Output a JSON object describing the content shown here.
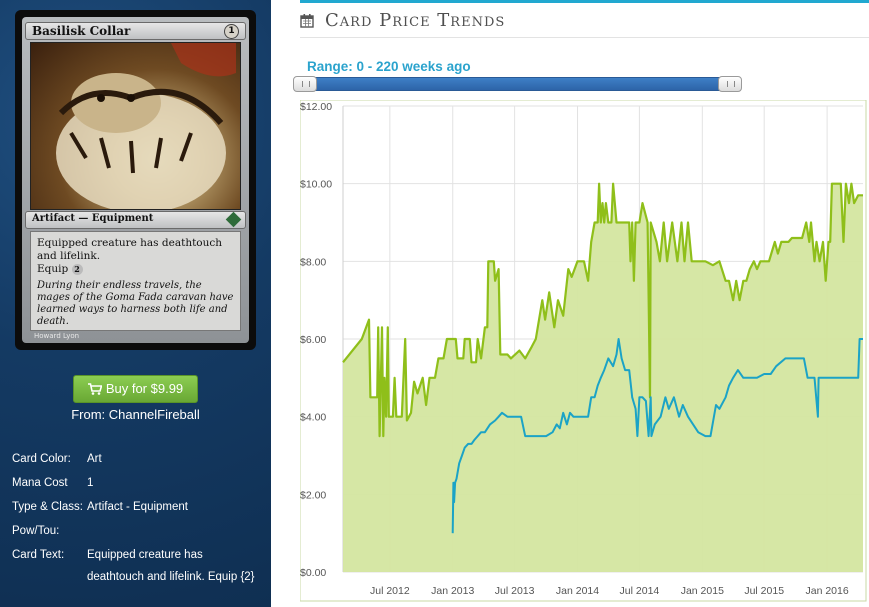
{
  "card": {
    "name": "Basilisk Collar",
    "mana_symbol": "1",
    "type_line": "Artifact — Equipment",
    "rules_text": "Equipped creature has deathtouch and lifelink.\nEquip",
    "equip_cost": "2",
    "flavor_text": "During their endless travels, the mages of the Goma Fada caravan have learned ways to harness both life and death.",
    "artist": "Howard Lyon"
  },
  "buy": {
    "label": "Buy for $9.99",
    "vendor": "From: ChannelFireball"
  },
  "info": [
    {
      "label": "Card Color:",
      "value": "Art"
    },
    {
      "label": "Mana Cost",
      "value": "1"
    },
    {
      "label": "Type & Class:",
      "value": "Artifact - Equipment"
    },
    {
      "label": "Pow/Tou:",
      "value": ""
    },
    {
      "label": "Card Text:",
      "value": "Equipped creature has deathtouch and lifelink. Equip {2}"
    }
  ],
  "header": {
    "title": "Card Price Trends"
  },
  "range": {
    "label": "Range: 0 - 220 weeks ago",
    "min": 0,
    "max": 220
  },
  "colors": {
    "accent": "#21a8d0",
    "paper_line": "#8fbf1a",
    "paper_fill": "#d4e6a0",
    "online_line": "#1ba3c6",
    "button": "#7dbd44",
    "panel": "#143a63"
  },
  "icons": {
    "calendar": "calendar-icon",
    "cart": "cart-icon",
    "set": "set-symbol-icon"
  },
  "chart_data": {
    "type": "line",
    "title": "",
    "xlabel": "",
    "ylabel": "",
    "x_ticks": [
      "Jul 2012",
      "Jan 2013",
      "Jul 2013",
      "Jan 2014",
      "Jul 2014",
      "Jan 2015",
      "Jul 2015",
      "Jan 2016"
    ],
    "y_ticks": [
      "$0.00",
      "$2.00",
      "$4.00",
      "$6.00",
      "$8.00",
      "$10.00",
      "$12.00"
    ],
    "ylim": [
      0,
      12
    ],
    "xlim": [
      "2012-02-15",
      "2016-04-15"
    ],
    "grid": true,
    "series": [
      {
        "area": true,
        "points": [
          [
            "2012-02-15",
            5.4
          ],
          [
            "2012-04-10",
            6.0
          ],
          [
            "2012-05-01",
            6.5
          ],
          [
            "2012-05-05",
            4.5
          ],
          [
            "2012-05-25",
            4.5
          ],
          [
            "2012-05-28",
            6.3
          ],
          [
            "2012-06-01",
            3.5
          ],
          [
            "2012-06-08",
            6.3
          ],
          [
            "2012-06-12",
            3.5
          ],
          [
            "2012-06-15",
            5.0
          ],
          [
            "2012-06-20",
            4.0
          ],
          [
            "2012-06-25",
            6.3
          ],
          [
            "2012-06-28",
            4.0
          ],
          [
            "2012-07-10",
            4.0
          ],
          [
            "2012-07-15",
            5.0
          ],
          [
            "2012-07-20",
            4.0
          ],
          [
            "2012-08-05",
            4.0
          ],
          [
            "2012-08-15",
            6.0
          ],
          [
            "2012-08-20",
            3.9
          ],
          [
            "2012-09-01",
            4.1
          ],
          [
            "2012-09-10",
            4.9
          ],
          [
            "2012-09-20",
            4.6
          ],
          [
            "2012-10-05",
            5.0
          ],
          [
            "2012-10-15",
            4.3
          ],
          [
            "2012-10-25",
            5.0
          ],
          [
            "2012-11-10",
            5.0
          ],
          [
            "2012-11-20",
            5.5
          ],
          [
            "2012-12-05",
            5.5
          ],
          [
            "2012-12-15",
            6.0
          ],
          [
            "2013-01-10",
            6.0
          ],
          [
            "2013-01-15",
            5.5
          ],
          [
            "2013-02-01",
            5.5
          ],
          [
            "2013-02-05",
            6.0
          ],
          [
            "2013-02-20",
            6.0
          ],
          [
            "2013-02-25",
            5.4
          ],
          [
            "2013-03-10",
            5.4
          ],
          [
            "2013-03-15",
            6.0
          ],
          [
            "2013-03-25",
            5.5
          ],
          [
            "2013-04-05",
            6.3
          ],
          [
            "2013-04-12",
            6.3
          ],
          [
            "2013-04-15",
            8.0
          ],
          [
            "2013-05-01",
            8.0
          ],
          [
            "2013-05-05",
            7.5
          ],
          [
            "2013-05-15",
            7.8
          ],
          [
            "2013-05-20",
            5.6
          ],
          [
            "2013-06-10",
            5.6
          ],
          [
            "2013-06-20",
            5.5
          ],
          [
            "2013-07-15",
            5.7
          ],
          [
            "2013-08-01",
            5.5
          ],
          [
            "2013-08-20",
            5.8
          ],
          [
            "2013-09-01",
            6.0
          ],
          [
            "2013-09-20",
            7.0
          ],
          [
            "2013-09-28",
            6.5
          ],
          [
            "2013-10-10",
            7.2
          ],
          [
            "2013-10-25",
            6.3
          ],
          [
            "2013-11-05",
            7.0
          ],
          [
            "2013-11-20",
            6.6
          ],
          [
            "2013-12-05",
            7.8
          ],
          [
            "2013-12-15",
            7.6
          ],
          [
            "2014-01-01",
            8.0
          ],
          [
            "2014-01-20",
            8.0
          ],
          [
            "2014-02-01",
            7.5
          ],
          [
            "2014-02-10",
            8.5
          ],
          [
            "2014-02-20",
            9.0
          ],
          [
            "2014-03-01",
            9.0
          ],
          [
            "2014-03-05",
            10.0
          ],
          [
            "2014-03-10",
            9.0
          ],
          [
            "2014-03-15",
            9.5
          ],
          [
            "2014-03-20",
            9.0
          ],
          [
            "2014-03-25",
            9.5
          ],
          [
            "2014-04-01",
            9.0
          ],
          [
            "2014-04-10",
            9.0
          ],
          [
            "2014-04-15",
            10.0
          ],
          [
            "2014-04-25",
            9.0
          ],
          [
            "2014-05-01",
            9.0
          ],
          [
            "2014-05-15",
            9.0
          ],
          [
            "2014-06-01",
            9.0
          ],
          [
            "2014-06-05",
            8.0
          ],
          [
            "2014-06-10",
            9.0
          ],
          [
            "2014-06-15",
            7.5
          ],
          [
            "2014-06-20",
            9.0
          ],
          [
            "2014-07-01",
            9.0
          ],
          [
            "2014-07-10",
            9.5
          ],
          [
            "2014-07-25",
            9.0
          ],
          [
            "2014-08-01",
            4.5
          ],
          [
            "2014-08-03",
            9.0
          ],
          [
            "2014-08-20",
            8.5
          ],
          [
            "2014-08-30",
            8.0
          ],
          [
            "2014-09-10",
            9.0
          ],
          [
            "2014-09-20",
            8.0
          ],
          [
            "2014-10-05",
            9.0
          ],
          [
            "2014-10-20",
            8.0
          ],
          [
            "2014-11-01",
            9.0
          ],
          [
            "2014-11-10",
            8.0
          ],
          [
            "2014-11-20",
            9.0
          ],
          [
            "2014-12-01",
            8.0
          ],
          [
            "2014-12-20",
            8.0
          ],
          [
            "2015-01-10",
            8.0
          ],
          [
            "2015-02-01",
            7.9
          ],
          [
            "2015-02-20",
            8.0
          ],
          [
            "2015-03-10",
            7.5
          ],
          [
            "2015-03-20",
            7.5
          ],
          [
            "2015-04-01",
            7.0
          ],
          [
            "2015-04-10",
            7.5
          ],
          [
            "2015-04-20",
            7.0
          ],
          [
            "2015-05-01",
            7.5
          ],
          [
            "2015-05-10",
            7.5
          ],
          [
            "2015-05-20",
            7.8
          ],
          [
            "2015-06-01",
            8.0
          ],
          [
            "2015-06-10",
            7.8
          ],
          [
            "2015-06-20",
            8.0
          ],
          [
            "2015-07-15",
            8.0
          ],
          [
            "2015-08-01",
            8.5
          ],
          [
            "2015-08-10",
            8.2
          ],
          [
            "2015-08-20",
            8.5
          ],
          [
            "2015-09-10",
            8.5
          ],
          [
            "2015-09-20",
            8.6
          ],
          [
            "2015-10-20",
            8.6
          ],
          [
            "2015-11-01",
            9.0
          ],
          [
            "2015-11-10",
            8.5
          ],
          [
            "2015-11-15",
            9.0
          ],
          [
            "2015-11-25",
            8.0
          ],
          [
            "2015-12-01",
            8.5
          ],
          [
            "2015-12-10",
            8.0
          ],
          [
            "2015-12-20",
            8.5
          ],
          [
            "2015-12-28",
            7.5
          ],
          [
            "2016-01-05",
            8.5
          ],
          [
            "2016-01-10",
            8.5
          ],
          [
            "2016-01-15",
            10.0
          ],
          [
            "2016-02-01",
            10.0
          ],
          [
            "2016-02-10",
            10.0
          ],
          [
            "2016-02-18",
            8.5
          ],
          [
            "2016-02-25",
            10.0
          ],
          [
            "2016-03-05",
            9.5
          ],
          [
            "2016-03-12",
            10.0
          ],
          [
            "2016-03-20",
            9.5
          ],
          [
            "2016-04-01",
            9.7
          ],
          [
            "2016-04-15",
            9.7
          ]
        ]
      },
      {
        "area": false,
        "points": [
          [
            "2013-01-01",
            1.0
          ],
          [
            "2013-01-03",
            2.3
          ],
          [
            "2013-01-05",
            1.8
          ],
          [
            "2013-01-08",
            2.3
          ],
          [
            "2013-01-12",
            2.4
          ],
          [
            "2013-01-20",
            2.8
          ],
          [
            "2013-01-28",
            3.0
          ],
          [
            "2013-02-05",
            3.2
          ],
          [
            "2013-02-15",
            3.3
          ],
          [
            "2013-02-25",
            3.3
          ],
          [
            "2013-03-05",
            3.4
          ],
          [
            "2013-03-15",
            3.5
          ],
          [
            "2013-03-25",
            3.6
          ],
          [
            "2013-04-05",
            3.6
          ],
          [
            "2013-04-20",
            3.8
          ],
          [
            "2013-05-05",
            3.9
          ],
          [
            "2013-05-15",
            4.0
          ],
          [
            "2013-05-25",
            4.1
          ],
          [
            "2013-06-10",
            4.0
          ],
          [
            "2013-07-01",
            4.0
          ],
          [
            "2013-07-20",
            4.0
          ],
          [
            "2013-08-01",
            3.5
          ],
          [
            "2013-08-20",
            3.5
          ],
          [
            "2013-09-10",
            3.5
          ],
          [
            "2013-10-01",
            3.5
          ],
          [
            "2013-10-20",
            3.6
          ],
          [
            "2013-11-01",
            3.8
          ],
          [
            "2013-11-10",
            3.7
          ],
          [
            "2013-11-20",
            4.1
          ],
          [
            "2013-12-01",
            3.8
          ],
          [
            "2013-12-10",
            4.1
          ],
          [
            "2013-12-20",
            4.0
          ],
          [
            "2014-01-10",
            4.0
          ],
          [
            "2014-02-01",
            4.0
          ],
          [
            "2014-02-10",
            4.5
          ],
          [
            "2014-02-20",
            4.5
          ],
          [
            "2014-03-01",
            4.8
          ],
          [
            "2014-03-10",
            5.0
          ],
          [
            "2014-03-20",
            5.2
          ],
          [
            "2014-04-01",
            5.5
          ],
          [
            "2014-04-15",
            5.3
          ],
          [
            "2014-04-25",
            5.6
          ],
          [
            "2014-05-01",
            6.0
          ],
          [
            "2014-05-10",
            5.5
          ],
          [
            "2014-05-20",
            5.2
          ],
          [
            "2014-06-01",
            5.2
          ],
          [
            "2014-06-10",
            4.5
          ],
          [
            "2014-06-20",
            4.2
          ],
          [
            "2014-06-25",
            3.5
          ],
          [
            "2014-07-01",
            4.5
          ],
          [
            "2014-07-10",
            4.5
          ],
          [
            "2014-07-20",
            4.4
          ],
          [
            "2014-07-28",
            3.5
          ],
          [
            "2014-08-03",
            4.5
          ],
          [
            "2014-08-05",
            3.5
          ],
          [
            "2014-08-15",
            3.8
          ],
          [
            "2014-09-01",
            4.0
          ],
          [
            "2014-09-15",
            4.5
          ],
          [
            "2014-09-25",
            4.2
          ],
          [
            "2014-10-10",
            4.5
          ],
          [
            "2014-10-25",
            4.0
          ],
          [
            "2014-11-05",
            4.3
          ],
          [
            "2014-11-20",
            4.0
          ],
          [
            "2014-12-05",
            3.8
          ],
          [
            "2014-12-20",
            3.6
          ],
          [
            "2015-01-10",
            3.5
          ],
          [
            "2015-01-25",
            3.5
          ],
          [
            "2015-02-10",
            4.3
          ],
          [
            "2015-02-20",
            4.2
          ],
          [
            "2015-03-10",
            4.5
          ],
          [
            "2015-03-20",
            4.8
          ],
          [
            "2015-04-01",
            5.0
          ],
          [
            "2015-04-15",
            5.2
          ],
          [
            "2015-05-01",
            5.0
          ],
          [
            "2015-05-20",
            5.0
          ],
          [
            "2015-06-10",
            5.0
          ],
          [
            "2015-07-01",
            5.1
          ],
          [
            "2015-07-20",
            5.1
          ],
          [
            "2015-08-05",
            5.3
          ],
          [
            "2015-09-01",
            5.5
          ],
          [
            "2015-10-10",
            5.5
          ],
          [
            "2015-10-25",
            5.5
          ],
          [
            "2015-11-05",
            5.0
          ],
          [
            "2015-11-25",
            5.0
          ],
          [
            "2015-12-05",
            4.0
          ],
          [
            "2015-12-07",
            5.0
          ],
          [
            "2016-01-10",
            5.0
          ],
          [
            "2016-02-10",
            5.0
          ],
          [
            "2016-03-25",
            5.0
          ],
          [
            "2016-04-01",
            5.0
          ],
          [
            "2016-04-05",
            6.0
          ],
          [
            "2016-04-15",
            6.0
          ]
        ]
      }
    ]
  }
}
